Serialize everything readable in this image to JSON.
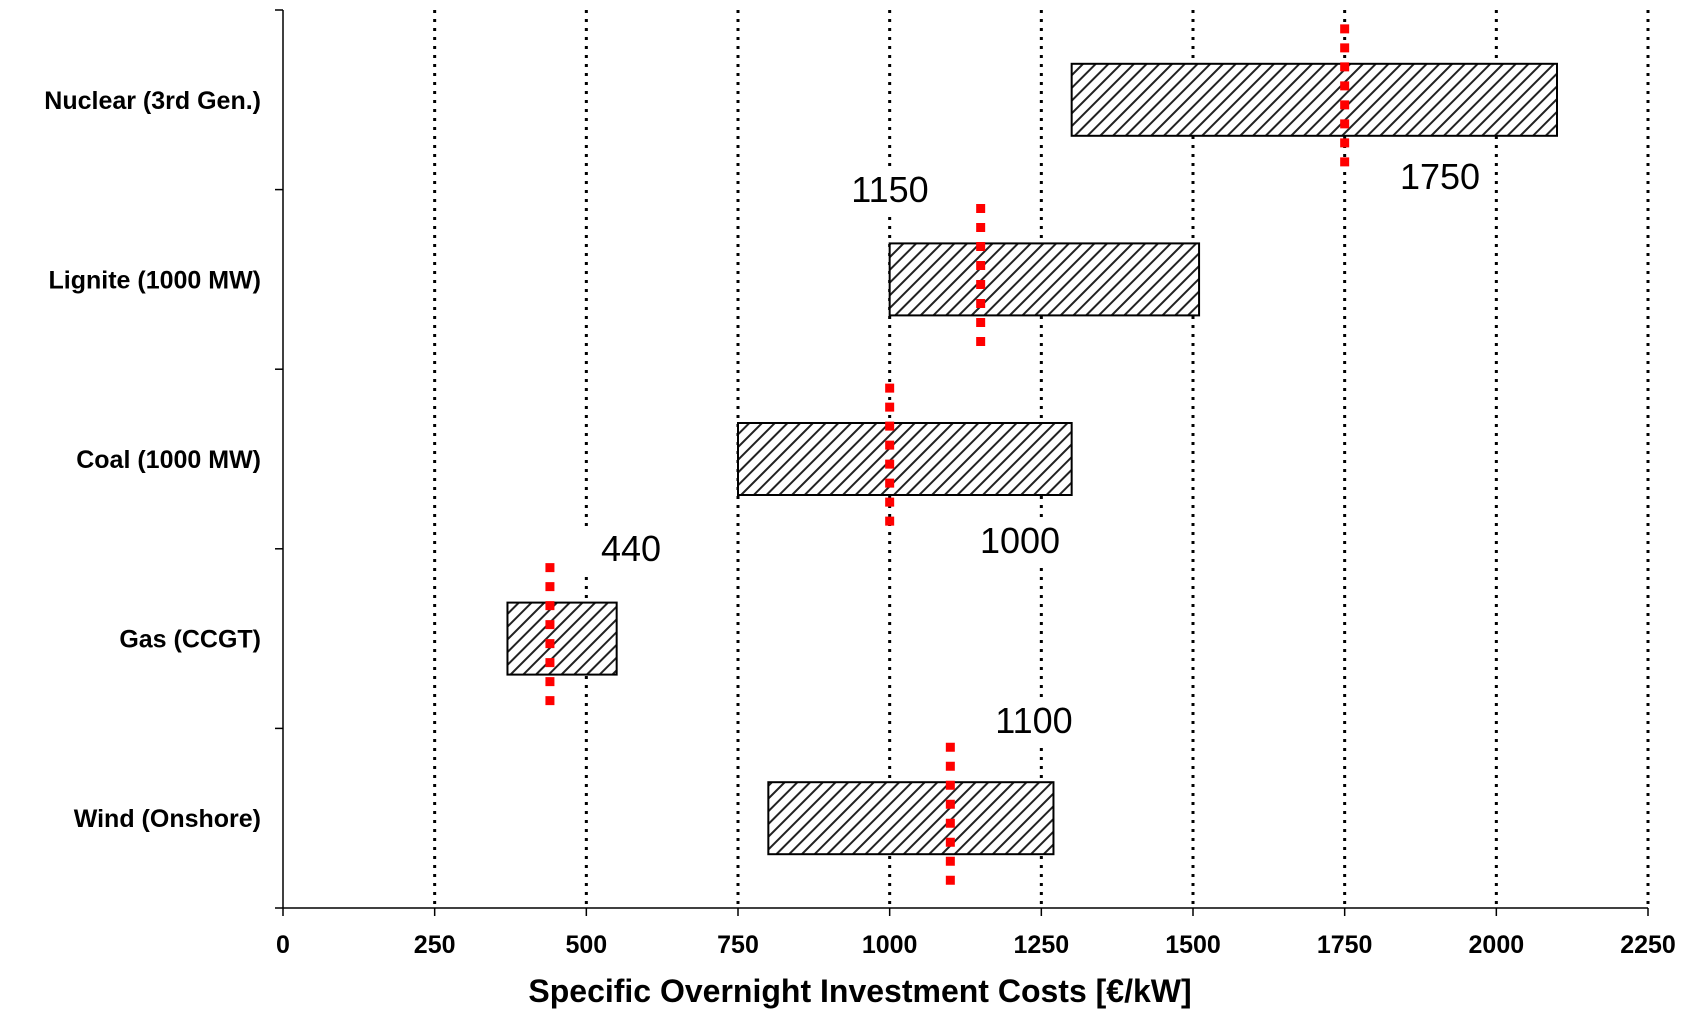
{
  "chart_data": {
    "type": "range-bar",
    "orientation": "horizontal",
    "categories": [
      "Nuclear (3rd Gen.)",
      "Lignite (1000 MW)",
      "Coal (1000 MW)",
      "Gas (CCGT)",
      "Wind (Onshore)"
    ],
    "ranges": [
      {
        "category": "Nuclear (3rd Gen.)",
        "min": 1300,
        "max": 2100,
        "reference": 1750
      },
      {
        "category": "Lignite (1000 MW)",
        "min": 1000,
        "max": 1510,
        "reference": 1150
      },
      {
        "category": "Coal (1000 MW)",
        "min": 750,
        "max": 1300,
        "reference": 1000
      },
      {
        "category": "Gas (CCGT)",
        "min": 370,
        "max": 550,
        "reference": 440
      },
      {
        "category": "Wind (Onshore)",
        "min": 800,
        "max": 1270,
        "reference": 1100
      }
    ],
    "annotations": [
      "1750",
      "1150",
      "1000",
      "440",
      "1100"
    ],
    "xlabel": "Specific Overnight Investment Costs [€/kW]",
    "ylabel": "",
    "xlim": [
      0,
      2250
    ],
    "xticks": [
      "0",
      "250",
      "500",
      "750",
      "1000",
      "1250",
      "1500",
      "1750",
      "2000",
      "2250"
    ],
    "grid": "vertical dotted",
    "colors": {
      "bar_fill": "#ffffff",
      "hatch": "#222222",
      "reference_marker": "#ff0000",
      "grid": "#000000"
    }
  }
}
